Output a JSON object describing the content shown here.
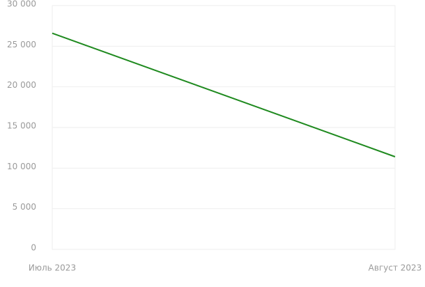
{
  "chart_data": {
    "type": "line",
    "categories": [
      "Июль 2023",
      "Август 2023"
    ],
    "series": [
      {
        "color": "#1f8a1f",
        "values": [
          26600,
          11400
        ]
      }
    ],
    "ylim": [
      0,
      30000
    ],
    "yticks": [
      0,
      {
        "value": 5000,
        "label": "5 000"
      },
      {
        "value": 10000,
        "label": "10 000"
      },
      {
        "value": 15000,
        "label": "15 000"
      },
      {
        "value": 20000,
        "label": "20 000"
      },
      {
        "value": 25000,
        "label": "25 000"
      },
      {
        "value": 30000,
        "label": "30 000"
      }
    ],
    "grid": true
  }
}
